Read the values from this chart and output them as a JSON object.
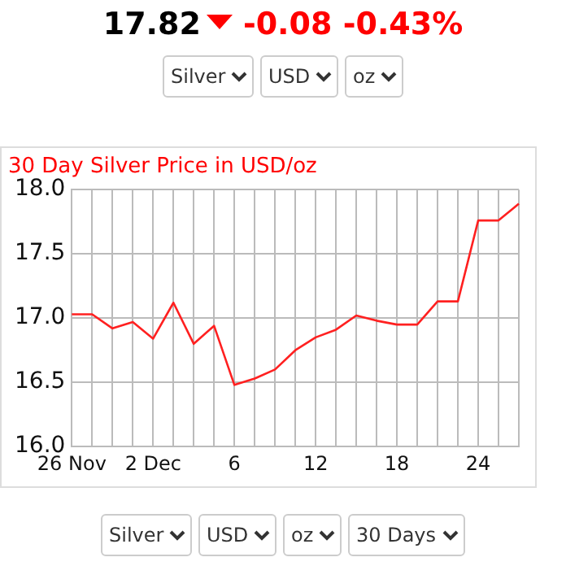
{
  "chart_data": {
    "type": "line",
    "title": "30 Day Silver Price in USD/oz",
    "categories": [
      "26 Nov",
      null,
      null,
      null,
      "2 Dec",
      null,
      null,
      null,
      "6",
      null,
      null,
      null,
      "12",
      null,
      null,
      null,
      "18",
      null,
      null,
      null,
      "24",
      null,
      null
    ],
    "series": [
      {
        "color": "#ff2020",
        "values": [
          17.03,
          17.03,
          16.92,
          16.97,
          16.84,
          17.12,
          16.8,
          16.94,
          16.48,
          16.53,
          16.6,
          16.75,
          16.85,
          16.91,
          17.02,
          16.98,
          16.95,
          16.95,
          17.13,
          17.13,
          17.76,
          17.76,
          17.89
        ]
      }
    ],
    "ylim": [
      16,
      18
    ],
    "yticks": [
      {
        "value": 16,
        "label": "16.0"
      },
      {
        "value": 16.5,
        "label": "16.5"
      },
      {
        "value": 17,
        "label": "17.0"
      },
      {
        "value": 17.5,
        "label": "17.5"
      },
      {
        "value": 18,
        "label": "18.0"
      }
    ],
    "grid": true,
    "legend": false,
    "marker": "none",
    "line_style": "solid",
    "annotations": [
      "17.82",
      "-0.08",
      "-0.43%",
      "Silver",
      "USD",
      "oz",
      "Silver",
      "USD",
      "oz",
      "30 Days"
    ]
  }
}
